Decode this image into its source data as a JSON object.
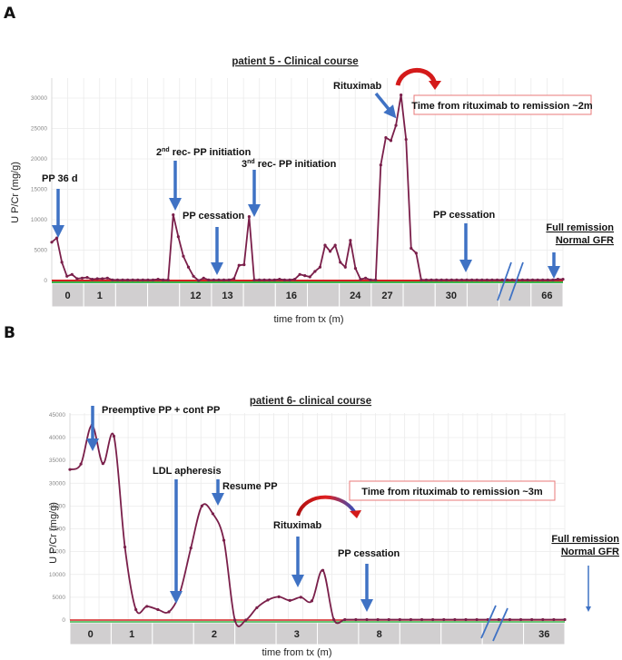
{
  "chart_data": [
    {
      "panel": "A",
      "type": "line",
      "title": "patient 5  - Clinical course",
      "xlabel": "time from tx (m)",
      "ylabel": "U P/Cr (mg/g)",
      "ylim": [
        0,
        31000
      ],
      "yticks": [
        0,
        5000,
        10000,
        15000,
        20000,
        25000,
        30000
      ],
      "grid": true,
      "x_categories": [
        "0",
        "1",
        "",
        "",
        "12",
        "13",
        "",
        "16",
        "",
        "24",
        "27",
        "",
        "30",
        "",
        "",
        "66"
      ],
      "series": [
        {
          "name": "U P/Cr",
          "color": "#7a1f4a",
          "values": [
            6300,
            7000,
            3000,
            700,
            1000,
            300,
            400,
            500,
            200,
            300,
            300,
            400,
            100,
            100,
            100,
            100,
            100,
            100,
            100,
            100,
            100,
            200,
            100,
            100,
            10800,
            7200,
            4000,
            2200,
            700,
            0,
            400,
            100,
            100,
            100,
            100,
            100,
            300,
            2500,
            2600,
            10500,
            100,
            100,
            100,
            100,
            100,
            200,
            100,
            100,
            200,
            1000,
            800,
            600,
            1500,
            2200,
            5800,
            4800,
            5800,
            3000,
            2200,
            6600,
            2000,
            200,
            400,
            100,
            100,
            19000,
            23500,
            23000,
            25500,
            30500,
            23200,
            5300,
            4500,
            100,
            100,
            100,
            100,
            100,
            100,
            100,
            100,
            100,
            100,
            100,
            100,
            100,
            100,
            100,
            100,
            100,
            100,
            100,
            100,
            100,
            100,
            100,
            100,
            100,
            100,
            100,
            200,
            200
          ]
        }
      ],
      "reference_lines": [
        {
          "name": "red-baseline",
          "color": "#d42020"
        },
        {
          "name": "green-baseline",
          "color": "#3cb44b"
        }
      ],
      "annotations": [
        {
          "text": "PP 36 d",
          "arrow_color": "#3f72c4"
        },
        {
          "text": "2nd rec- PP initiation",
          "arrow_color": "#3f72c4"
        },
        {
          "text": "PP cessation",
          "arrow_color": "#3f72c4"
        },
        {
          "text": "3nd rec- PP initiation",
          "arrow_color": "#3f72c4"
        },
        {
          "text": "Rituximab",
          "arrow_color": "#3f72c4"
        },
        {
          "text": "PP cessation",
          "arrow_color": "#3f72c4"
        },
        {
          "text": "Full remission",
          "underline": true
        },
        {
          "text": "Normal GFR",
          "underline": true
        },
        {
          "text": "Time from rituximab to remission ~2m",
          "boxed": true,
          "border_color": "#e87a7a"
        }
      ]
    },
    {
      "panel": "B",
      "type": "line",
      "title": "patient 6- clinical course",
      "xlabel": "time from tx (m)",
      "ylabel": "U P/Cr (mg/g)",
      "ylim": [
        0,
        45000
      ],
      "yticks": [
        0,
        5000,
        10000,
        15000,
        20000,
        25000,
        30000,
        35000,
        40000,
        45000
      ],
      "grid": true,
      "x_categories": [
        "0",
        "1",
        "",
        "2",
        "",
        "3",
        "",
        "8",
        "",
        "",
        "",
        "36"
      ],
      "series": [
        {
          "name": "U P/Cr",
          "color": "#7a1f4a",
          "values": [
            33000,
            34200,
            42700,
            34300,
            40300,
            16000,
            2300,
            3000,
            2300,
            1800,
            6000,
            15800,
            25000,
            23300,
            17500,
            0,
            0,
            2700,
            4400,
            5100,
            4300,
            5000,
            4200,
            10900,
            100,
            100,
            100,
            100,
            100,
            100,
            100,
            100,
            100,
            100,
            100,
            100,
            100,
            100,
            100,
            100,
            100,
            100,
            100,
            100,
            100,
            100
          ]
        }
      ],
      "reference_lines": [
        {
          "name": "red-baseline",
          "color": "#d42020"
        },
        {
          "name": "green-baseline",
          "color": "#3cb44b"
        }
      ],
      "annotations": [
        {
          "text": "Preemptive PP + cont PP",
          "arrow_color": "#3f72c4"
        },
        {
          "text": "LDL apheresis",
          "arrow_color": "#3f72c4"
        },
        {
          "text": "Resume PP",
          "arrow_color": "#3f72c4"
        },
        {
          "text": "Rituximab",
          "arrow_color": "#3f72c4"
        },
        {
          "text": "PP cessation",
          "arrow_color": "#3f72c4"
        },
        {
          "text": "Full remission",
          "underline": true
        },
        {
          "text": "Normal GFR",
          "underline": true
        },
        {
          "text": "Time from rituximab to remission ~3m",
          "boxed": true,
          "border_color": "#e87a7a"
        }
      ]
    }
  ],
  "panels": {
    "a": {
      "letter": "A",
      "title": "patient 5  - Clinical course",
      "ylabel": "U P/Cr (mg/g)",
      "xlabel": "time from tx (m)",
      "yticks": [
        "0",
        "5000",
        "10000",
        "15000",
        "20000",
        "25000",
        "30000"
      ],
      "cats": [
        "0",
        "1",
        "",
        "",
        "12",
        "13",
        "",
        "16",
        "",
        "24",
        "27",
        "",
        "30",
        "",
        "",
        "66"
      ],
      "ann": {
        "pp36": "PP 36 d",
        "rec2_pre": "2",
        "rec2_sup": "nd",
        "rec2_post": " rec- PP initiation",
        "pp_cess1": "PP cessation",
        "rec3_pre": "3",
        "rec3_sup": "nd",
        "rec3_post": " rec- PP initiation",
        "ritux": "Rituximab",
        "pp_cess2": "PP cessation",
        "full_remission": "Full remission",
        "normal_gfr": "Normal GFR",
        "box": "Time from rituximab to remission ~2m"
      }
    },
    "b": {
      "letter": "B",
      "title": "patient 6- clinical course",
      "ylabel": "U P/Cr (mg/g)",
      "xlabel": "time from tx (m)",
      "yticks": [
        "0",
        "5000",
        "10000",
        "15000",
        "20000",
        "25000",
        "30000",
        "35000",
        "40000",
        "45000"
      ],
      "cats": [
        "0",
        "1",
        "",
        "2",
        "",
        "3",
        "",
        "8",
        "",
        "",
        "",
        "36"
      ],
      "ann": {
        "preemptive": "Preemptive PP + cont PP",
        "ldl": "LDL apheresis",
        "resume": "Resume PP",
        "ritux": "Rituximab",
        "pp_cess": "PP cessation",
        "full_remission": "Full remission",
        "normal_gfr": "Normal GFR",
        "box": "Time from rituximab to remission ~3m"
      }
    }
  },
  "colors": {
    "line": "#7a1f4a",
    "arrow": "#3f72c4",
    "curve_arrow": "#d41a1a",
    "baseline_red": "#d42020",
    "baseline_green": "#3cb44b",
    "box_border": "#e87a7a",
    "cat_bg": "#d1cfd0",
    "grid": "#ebebeb"
  }
}
